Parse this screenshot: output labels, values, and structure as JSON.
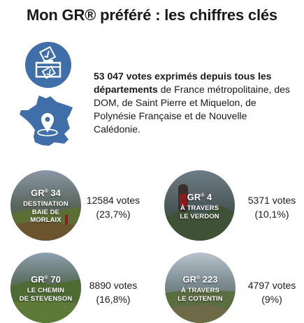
{
  "title": "Mon GR® préféré : les chiffres clés",
  "intro": {
    "bold_text": "53 047 votes exprimés depuis tous les départements",
    "rest_text": " de France métropolitaine, des DOM, de Saint Pierre et Miquelon, de Polynésie Française et de Nouvelle Calédonie."
  },
  "icons": {
    "ballot": "ballot-box-icon",
    "map": "france-map-location-icon"
  },
  "colors": {
    "accent": "#3f6ea9"
  },
  "routes": [
    {
      "gr": "GR",
      "reg": "®",
      "number": " 34",
      "line1": "DESTINATION",
      "line2": "BAIE DE",
      "line3": "MORLAIX",
      "votes": "12584 votes",
      "percent": "(23,7%)"
    },
    {
      "gr": "GR",
      "reg": "®",
      "number": " 4",
      "line1": "À TRAVERS",
      "line2": "LE VERDON",
      "line3": "",
      "votes": "5371 votes",
      "percent": "(10,1%)"
    },
    {
      "gr": "GR",
      "reg": "®",
      "number": " 70",
      "line1": "LE CHEMIN",
      "line2": "DE STEVENSON",
      "line3": "",
      "votes": "8890 votes",
      "percent": "(16,8%)"
    },
    {
      "gr": "GR",
      "reg": "®",
      "number": " 223",
      "line1": "À TRAVERS",
      "line2": "LE COTENTIN",
      "line3": "",
      "votes": "4797 votes",
      "percent": "(9%)"
    }
  ]
}
